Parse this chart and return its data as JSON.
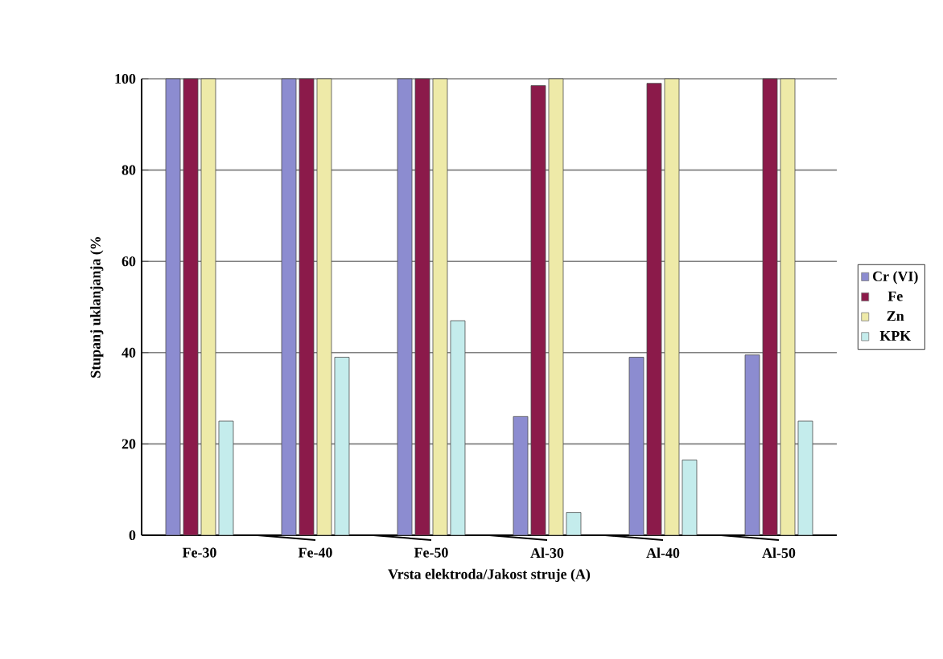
{
  "chart_data": {
    "type": "bar",
    "xlabel": "Vrsta elektroda/Jakost struje (A)",
    "ylabel": "Stupanj uklanjanja (%",
    "categories": [
      "Fe-30",
      "Fe-40",
      "Fe-50",
      "Al-30",
      "Al-40",
      "Al-50"
    ],
    "series": [
      {
        "name": "Cr (VI)",
        "color": "#8c8cd0",
        "values": [
          100,
          100,
          100,
          26,
          39,
          39.5
        ]
      },
      {
        "name": "Fe",
        "color": "#8b1a4a",
        "values": [
          100,
          100,
          100,
          98.5,
          99,
          100
        ]
      },
      {
        "name": "Zn",
        "color": "#eeeaa8",
        "values": [
          100,
          100,
          100,
          100,
          100,
          100
        ]
      },
      {
        "name": "KPK",
        "color": "#c4ecec",
        "values": [
          25,
          39,
          47,
          5,
          16.5,
          25
        ]
      }
    ],
    "ylim": [
      0,
      100
    ],
    "yticks": [
      0,
      20,
      40,
      60,
      80,
      100
    ],
    "grid": "y",
    "legend": "right"
  }
}
